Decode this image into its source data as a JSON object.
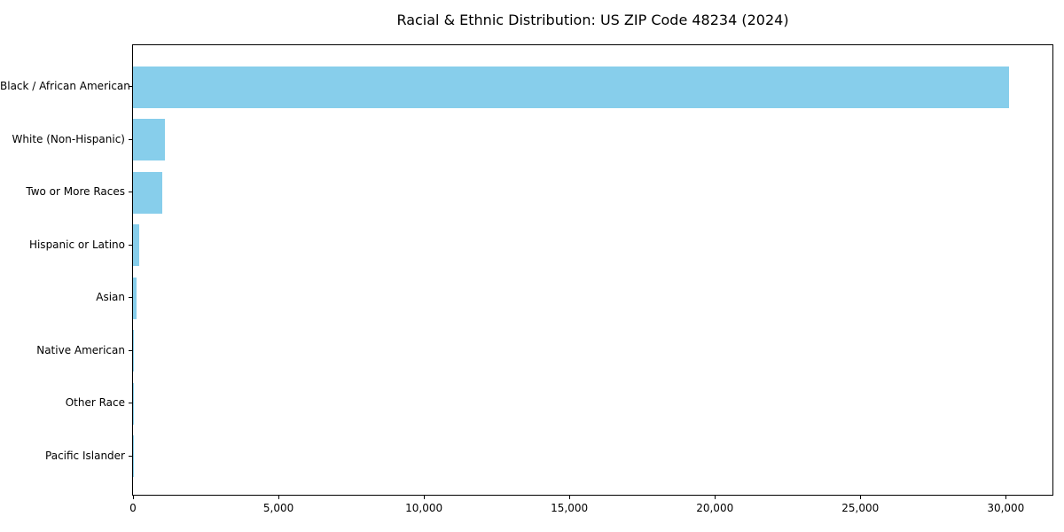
{
  "chart_data": {
    "type": "bar",
    "orientation": "horizontal",
    "title": "Racial & Ethnic Distribution: US ZIP Code 48234 (2024)",
    "categories": [
      "Black / African American",
      "White (Non-Hispanic)",
      "Two or More Races",
      "Hispanic or Latino",
      "Asian",
      "Native American",
      "Other Race",
      "Pacific Islander"
    ],
    "values": [
      30100,
      1100,
      1005,
      215,
      120,
      45,
      30,
      10
    ],
    "bar_color": "#87CEEB",
    "axis_color": "#000000",
    "text_color": "#000000",
    "background_color": "#ffffff",
    "xlim": [
      0,
      31605
    ],
    "xticks": [
      {
        "value": 0,
        "label": "0"
      },
      {
        "value": 5000,
        "label": "5,000"
      },
      {
        "value": 10000,
        "label": "10,000"
      },
      {
        "value": 15000,
        "label": "15,000"
      },
      {
        "value": 20000,
        "label": "20,000"
      },
      {
        "value": 25000,
        "label": "25,000"
      },
      {
        "value": 30000,
        "label": "30,000"
      }
    ],
    "xlabel": "",
    "ylabel": "",
    "grid": false,
    "legend": "none"
  }
}
